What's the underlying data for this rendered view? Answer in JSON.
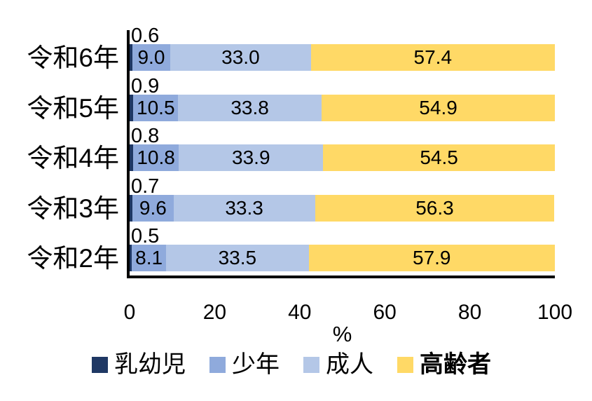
{
  "chart_data": {
    "type": "bar",
    "orientation": "horizontal-stacked",
    "categories": [
      "令和6年",
      "令和5年",
      "令和4年",
      "令和3年",
      "令和2年"
    ],
    "series": [
      {
        "key": "infants",
        "name": "乳幼児",
        "color": "#1F3864",
        "bold_legend": false,
        "label_placement": "above",
        "values": [
          0.6,
          0.9,
          0.8,
          0.7,
          0.5
        ]
      },
      {
        "key": "juveniles",
        "name": "少年",
        "color": "#8FAADC",
        "bold_legend": false,
        "label_placement": "inside",
        "values": [
          9.0,
          10.5,
          10.8,
          9.6,
          8.1
        ]
      },
      {
        "key": "adults",
        "name": "成人",
        "color": "#B4C7E7",
        "bold_legend": false,
        "label_placement": "inside",
        "values": [
          33.0,
          33.8,
          33.9,
          33.3,
          33.5
        ]
      },
      {
        "key": "elderly",
        "name": "高齢者",
        "color": "#FFD966",
        "bold_legend": true,
        "label_placement": "inside",
        "values": [
          57.4,
          54.9,
          54.5,
          56.3,
          57.9
        ]
      }
    ],
    "xlabel": "%",
    "xlim": [
      0,
      100
    ],
    "xticks": [
      0,
      20,
      40,
      60,
      80,
      100
    ],
    "grid": false,
    "legend_position": "bottom",
    "axis_color": "#000000",
    "label_decimals": 1
  }
}
